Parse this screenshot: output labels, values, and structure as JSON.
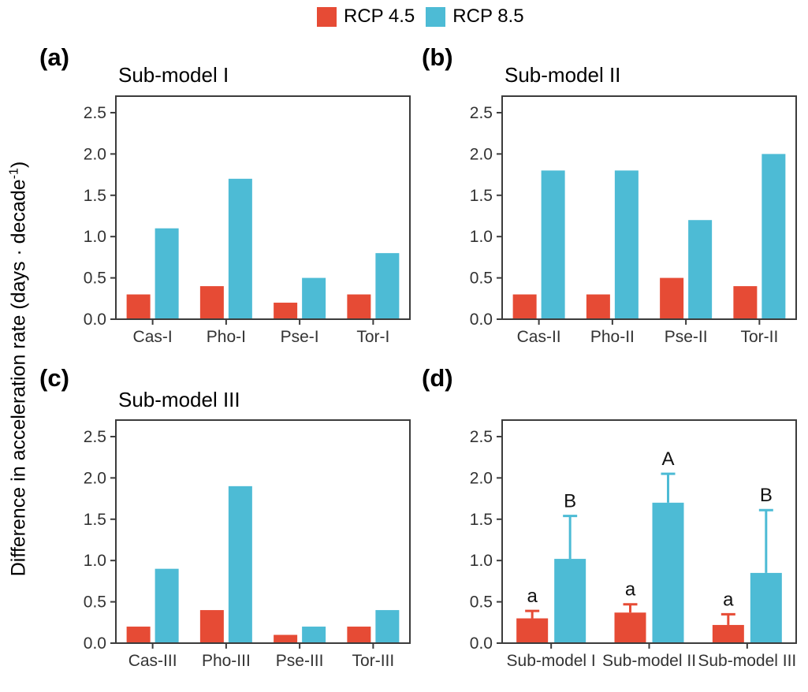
{
  "figure": {
    "colors": {
      "rcp45": "#E64B35",
      "rcp85": "#4DBBD5",
      "frame": "#3C3C3C",
      "tick_text": "#333333",
      "sig_text": "#111111"
    },
    "legend": [
      {
        "label": "RCP 4.5",
        "color_key": "rcp45"
      },
      {
        "label": "RCP 8.5",
        "color_key": "rcp85"
      }
    ],
    "y_axis_label": {
      "prefix": "Difference in acceleration rate (days · decade",
      "superscript": "-1",
      "suffix": ")"
    },
    "panel_letters": {
      "a": "(a)",
      "b": "(b)",
      "c": "(c)",
      "d": "(d)"
    },
    "panel_titles": {
      "a": "Sub-model I",
      "b": "Sub-model II",
      "c": "Sub-model III",
      "d": ""
    }
  },
  "chart_data": [
    {
      "id": "a",
      "type": "bar",
      "title": "Sub-model I",
      "categories": [
        "Cas-I",
        "Pho-I",
        "Pse-I",
        "Tor-I"
      ],
      "series": [
        {
          "name": "RCP 4.5",
          "color_key": "rcp45",
          "values": [
            0.3,
            0.4,
            0.2,
            0.3
          ]
        },
        {
          "name": "RCP 8.5",
          "color_key": "rcp85",
          "values": [
            1.1,
            1.7,
            0.5,
            0.8
          ]
        }
      ],
      "ylabel": "Difference in acceleration rate (days · decade⁻¹)",
      "ylim": [
        0,
        2.7
      ],
      "y_ticks": [
        {
          "label": "0.0",
          "value": 0.0
        },
        {
          "label": "0.5",
          "value": 0.5
        },
        {
          "label": "1.0",
          "value": 1.0
        },
        {
          "label": "1.5",
          "value": 1.5
        },
        {
          "label": "2.0",
          "value": 2.0
        },
        {
          "label": "2.5",
          "value": 2.5
        }
      ],
      "grid": false,
      "legend_position": "top-center-shared"
    },
    {
      "id": "b",
      "type": "bar",
      "title": "Sub-model II",
      "categories": [
        "Cas-II",
        "Pho-II",
        "Pse-II",
        "Tor-II"
      ],
      "series": [
        {
          "name": "RCP 4.5",
          "color_key": "rcp45",
          "values": [
            0.3,
            0.3,
            0.5,
            0.4
          ]
        },
        {
          "name": "RCP 8.5",
          "color_key": "rcp85",
          "values": [
            1.8,
            1.8,
            1.2,
            2.0
          ]
        }
      ],
      "ylabel": "Difference in acceleration rate (days · decade⁻¹)",
      "ylim": [
        0,
        2.7
      ],
      "y_ticks": [
        {
          "label": "0.0",
          "value": 0.0
        },
        {
          "label": "0.5",
          "value": 0.5
        },
        {
          "label": "1.0",
          "value": 1.0
        },
        {
          "label": "1.5",
          "value": 1.5
        },
        {
          "label": "2.0",
          "value": 2.0
        },
        {
          "label": "2.5",
          "value": 2.5
        }
      ],
      "grid": false,
      "legend_position": "top-center-shared"
    },
    {
      "id": "c",
      "type": "bar",
      "title": "Sub-model III",
      "categories": [
        "Cas-III",
        "Pho-III",
        "Pse-III",
        "Tor-III"
      ],
      "series": [
        {
          "name": "RCP 4.5",
          "color_key": "rcp45",
          "values": [
            0.2,
            0.4,
            0.1,
            0.2
          ]
        },
        {
          "name": "RCP 8.5",
          "color_key": "rcp85",
          "values": [
            0.9,
            1.9,
            0.2,
            0.4
          ]
        }
      ],
      "ylabel": "Difference in acceleration rate (days · decade⁻¹)",
      "ylim": [
        0,
        2.7
      ],
      "y_ticks": [
        {
          "label": "0.0",
          "value": 0.0
        },
        {
          "label": "0.5",
          "value": 0.5
        },
        {
          "label": "1.0",
          "value": 1.0
        },
        {
          "label": "1.5",
          "value": 1.5
        },
        {
          "label": "2.0",
          "value": 2.0
        },
        {
          "label": "2.5",
          "value": 2.5
        }
      ],
      "grid": false,
      "legend_position": "top-center-shared"
    },
    {
      "id": "d",
      "type": "bar",
      "title": "",
      "categories": [
        "Sub-model I",
        "Sub-model II",
        "Sub-model III"
      ],
      "series": [
        {
          "name": "RCP 4.5",
          "color_key": "rcp45",
          "values": [
            0.3,
            0.37,
            0.22
          ],
          "error_top": [
            0.39,
            0.47,
            0.35
          ],
          "sig_letters": [
            "a",
            "a",
            "a"
          ]
        },
        {
          "name": "RCP 8.5",
          "color_key": "rcp85",
          "values": [
            1.02,
            1.7,
            0.85
          ],
          "error_top": [
            1.54,
            2.05,
            1.61
          ],
          "sig_letters": [
            "B",
            "A",
            "B"
          ]
        }
      ],
      "ylabel": "Difference in acceleration rate (days · decade⁻¹)",
      "ylim": [
        0,
        2.7
      ],
      "y_ticks": [
        {
          "label": "0.0",
          "value": 0.0
        },
        {
          "label": "0.5",
          "value": 0.5
        },
        {
          "label": "1.0",
          "value": 1.0
        },
        {
          "label": "1.5",
          "value": 1.5
        },
        {
          "label": "2.0",
          "value": 2.0
        },
        {
          "label": "2.5",
          "value": 2.5
        }
      ],
      "grid": false,
      "legend_position": "top-center-shared"
    }
  ]
}
